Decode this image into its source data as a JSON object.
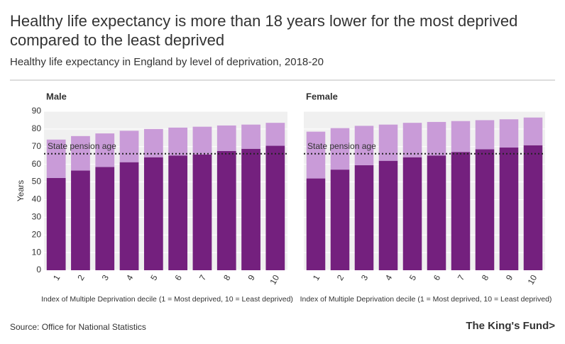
{
  "title": "Healthy life expectancy is more than 18 years lower for the most deprived compared to the least deprived",
  "subtitle": "Healthy life expectancy in England by level of deprivation, 2018-20",
  "source": "Source: Office for National Statistics",
  "brand": "The King's Fund>",
  "chart_data": [
    {
      "type": "stacked_bar",
      "title": "Male",
      "categories": [
        "1",
        "2",
        "3",
        "4",
        "5",
        "6",
        "7",
        "8",
        "9",
        "10"
      ],
      "series": [
        {
          "color": "#74207e",
          "values": [
            52.3,
            56.5,
            58.5,
            61.2,
            64,
            65,
            65.5,
            67.5,
            68.8,
            70.5
          ]
        },
        {
          "color": "#c99bd8",
          "values": [
            21.7,
            19.5,
            19,
            17.8,
            16,
            15.8,
            15.8,
            14.5,
            13.7,
            13
          ]
        }
      ],
      "ylim": [
        0,
        90
      ],
      "yticks": [
        0,
        10,
        20,
        30,
        40,
        50,
        60,
        70,
        80,
        90
      ],
      "tick_labels": true,
      "grid": true,
      "y_label": "Years",
      "x_label": "Index of Multiple Deprivation decile (1 = Most deprived, 10 = Least deprived)",
      "reference_line": {
        "value": 66,
        "label": "State pension age"
      }
    },
    {
      "type": "stacked_bar",
      "title": "Female",
      "categories": [
        "1",
        "2",
        "3",
        "4",
        "5",
        "6",
        "7",
        "8",
        "9",
        "10"
      ],
      "series": [
        {
          "color": "#74207e",
          "values": [
            52,
            57,
            59.5,
            62,
            64,
            65,
            67,
            68.5,
            69.5,
            70.8
          ]
        },
        {
          "color": "#c99bd8",
          "values": [
            26.5,
            23.5,
            22.3,
            20.5,
            19.5,
            19,
            17.5,
            16.5,
            16,
            15.7
          ]
        }
      ],
      "ylim": [
        0,
        90
      ],
      "yticks": [
        0,
        10,
        20,
        30,
        40,
        50,
        60,
        70,
        80,
        90
      ],
      "tick_labels": false,
      "grid": true,
      "x_label": "Index of Multiple Deprivation decile (1 = Most deprived, 10 = Least deprived)",
      "reference_line": {
        "value": 66,
        "label": "State pension age"
      }
    }
  ]
}
